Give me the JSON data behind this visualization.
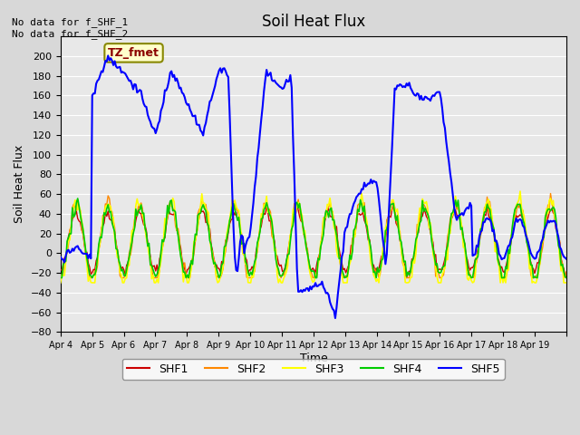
{
  "title": "Soil Heat Flux",
  "ylabel": "Soil Heat Flux",
  "xlabel": "Time",
  "text_no_data": "No data for f_SHF_1\nNo data for f_SHF_2",
  "annotation_label": "TZ_fmet",
  "ylim": [
    -80,
    220
  ],
  "yticks": [
    -80,
    -60,
    -40,
    -20,
    0,
    20,
    40,
    60,
    80,
    100,
    120,
    140,
    160,
    180,
    200
  ],
  "background_color": "#e8e8e8",
  "plot_bg_color": "#e0e0e0",
  "legend_labels": [
    "SHF1",
    "SHF2",
    "SHF3",
    "SHF4",
    "SHF5"
  ],
  "legend_colors": [
    "#cc0000",
    "#ff8800",
    "#ffff00",
    "#00cc00",
    "#0000ff"
  ],
  "x_tick_labels": [
    "Apr 4",
    "Apr 5",
    "Apr 6",
    "Apr 7",
    "Apr 8",
    "Apr 9",
    "Apr 10",
    "Apr 11",
    "Apr 12",
    "Apr 13",
    "Apr 14",
    "Apr 15",
    "Apr 16",
    "Apr 17",
    "Apr 18",
    "Apr 19"
  ],
  "days": 16
}
